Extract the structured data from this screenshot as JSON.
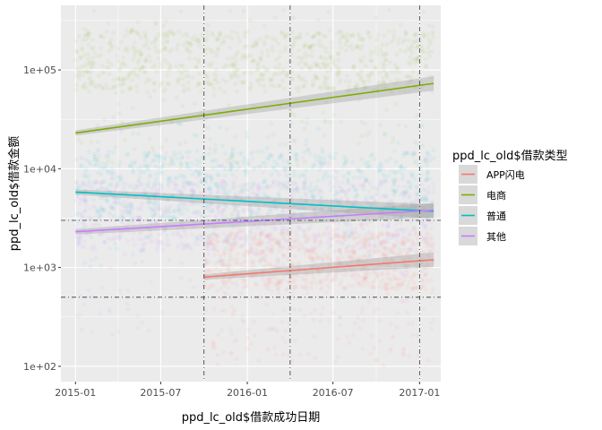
{
  "chart_data": {
    "type": "scatter",
    "xlabel": "ppd_lc_old$借款成功日期",
    "ylabel": "ppd_lc_old$借款金额",
    "x_range": [
      "2014-12-01",
      "2017-02-15"
    ],
    "y_scale": "log10",
    "ylim": [
      70,
      450000
    ],
    "x_ticks": [
      {
        "date": "2015-01-01",
        "label": "2015-01"
      },
      {
        "date": "2015-07-01",
        "label": "2015-07"
      },
      {
        "date": "2016-01-01",
        "label": "2016-01"
      },
      {
        "date": "2016-07-01",
        "label": "2016-07"
      },
      {
        "date": "2017-01-01",
        "label": "2017-01"
      }
    ],
    "y_ticks": [
      {
        "value": 100,
        "label": "1e+02"
      },
      {
        "value": 1000,
        "label": "1e+03"
      },
      {
        "value": 10000,
        "label": "1e+04"
      },
      {
        "value": 100000,
        "label": "1e+05"
      }
    ],
    "reference_lines": {
      "vertical_dates": [
        "2015-10-01",
        "2016-04-01",
        "2017-01-01"
      ],
      "horizontal_values": [
        3000,
        500
      ]
    },
    "legend": {
      "title": "ppd_lc_old$借款类型",
      "placement": "right",
      "entries": [
        "APP闪电",
        "电商",
        "普通",
        "其他"
      ]
    },
    "series": [
      {
        "name": "APP闪电",
        "color": "#F8766D",
        "x_span": [
          "2015-10-01",
          "2017-01-31"
        ],
        "point_band": {
          "low": 100,
          "mid_low": 600,
          "mid_high": 4000
        },
        "trend": {
          "x": [
            "2015-10-01",
            "2017-01-31"
          ],
          "y": [
            800,
            1200
          ]
        }
      },
      {
        "name": "电商",
        "color": "#7CAE00",
        "x_span": [
          "2015-01-01",
          "2017-01-31"
        ],
        "point_band": {
          "low": 10000,
          "mid_low": 60000,
          "mid_high": 450000
        },
        "trend": {
          "x": [
            "2015-01-01",
            "2017-01-31"
          ],
          "y": [
            23000,
            73000
          ]
        }
      },
      {
        "name": "普通",
        "color": "#00BFC4",
        "x_span": [
          "2015-01-01",
          "2017-01-31"
        ],
        "point_band": {
          "low": 1000,
          "mid_low": 3000,
          "mid_high": 30000
        },
        "trend": {
          "x": [
            "2015-01-01",
            "2017-01-31"
          ],
          "y": [
            5800,
            3700
          ]
        }
      },
      {
        "name": "其他",
        "color": "#C77CFF",
        "x_span": [
          "2015-01-01",
          "2017-01-31"
        ],
        "point_band": {
          "low": 200,
          "mid_low": 1500,
          "mid_high": 15000
        },
        "trend": {
          "x": [
            "2015-01-01",
            "2017-01-31"
          ],
          "y": [
            2300,
            3800
          ]
        }
      }
    ]
  }
}
